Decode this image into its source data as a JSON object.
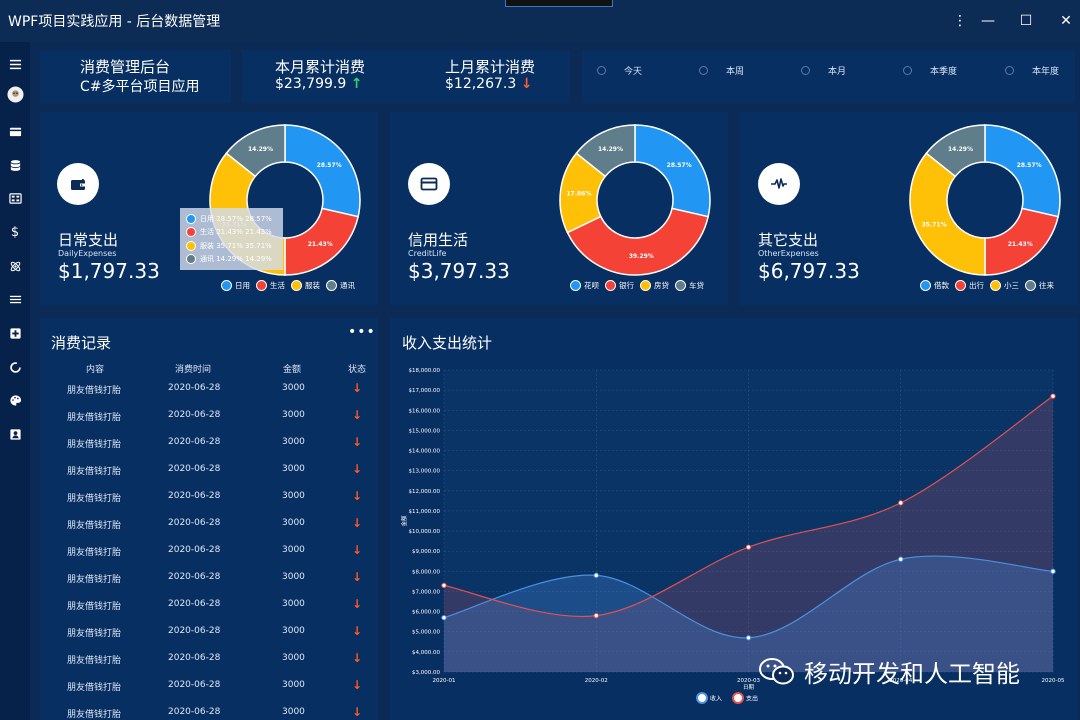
{
  "window": {
    "title": "WPF项目实践应用 - 后台数据管理",
    "controls": [
      "⋮",
      "—",
      "☐",
      "✕"
    ]
  },
  "header": {
    "app_title": "消费管理后台",
    "app_subtitle": "C#多平台项目应用",
    "month_label": "本月累计消费",
    "month_value": "$23,799.9",
    "month_trend": "↑",
    "last_month_label": "上月累计消费",
    "last_month_value": "$12,267.3",
    "last_month_trend": "↓"
  },
  "periods": [
    "今天",
    "本周",
    "本月",
    "本季度",
    "本年度"
  ],
  "cards": [
    {
      "title": "日常支出",
      "subtitle": "DailyExpenses",
      "amount": "$1,797.33",
      "icon": "wallet-icon",
      "slices": [
        {
          "name": "日用",
          "value": 28.57,
          "label": "28.57%",
          "color": "#2196f3"
        },
        {
          "name": "生活",
          "value": 21.43,
          "label": "21.43%",
          "color": "#f44336"
        },
        {
          "name": "服装",
          "value": 35.71,
          "label": "35.71%",
          "color": "#ffc107"
        },
        {
          "name": "通讯",
          "value": 14.29,
          "label": "14.29%",
          "color": "#607d8b"
        }
      ],
      "tooltip": [
        {
          "name": "日用",
          "text": "日用 28.57% 28.57%"
        },
        {
          "name": "生活",
          "text": "生活 21.43% 21.43%"
        },
        {
          "name": "服装",
          "text": "服装 35.71% 35.71%"
        },
        {
          "name": "通讯",
          "text": "通讯 14.29% 14.29%"
        }
      ]
    },
    {
      "title": "信用生活",
      "subtitle": "CreditLife",
      "amount": "$3,797.33",
      "icon": "credit-card-icon",
      "slices": [
        {
          "name": "花呗",
          "value": 28.57,
          "label": "28.57%",
          "color": "#2196f3"
        },
        {
          "name": "银行",
          "value": 39.29,
          "label": "39.29%",
          "color": "#f44336"
        },
        {
          "name": "房贷",
          "value": 17.86,
          "label": "17.86%",
          "color": "#ffc107"
        },
        {
          "name": "车贷",
          "value": 14.29,
          "label": "14.29%",
          "color": "#607d8b"
        }
      ]
    },
    {
      "title": "其它支出",
      "subtitle": "OtherExpenses",
      "amount": "$6,797.33",
      "icon": "pulse-icon",
      "slices": [
        {
          "name": "借款",
          "value": 28.57,
          "label": "28.57%",
          "color": "#2196f3"
        },
        {
          "name": "出行",
          "value": 21.43,
          "label": "21.43%",
          "color": "#f44336"
        },
        {
          "name": "小三",
          "value": 35.71,
          "label": "35.71%",
          "color": "#ffc107"
        },
        {
          "name": "往来",
          "value": 14.29,
          "label": "14.29%",
          "color": "#607d8b"
        }
      ]
    }
  ],
  "records": {
    "title": "消费记录",
    "more": "•••",
    "columns": [
      "内容",
      "消费时间",
      "金额",
      "状态"
    ],
    "rows": [
      [
        "朋友借钱打胎",
        "2020-06-28",
        "3000",
        "↓"
      ],
      [
        "朋友借钱打胎",
        "2020-06-28",
        "3000",
        "↓"
      ],
      [
        "朋友借钱打胎",
        "2020-06-28",
        "3000",
        "↓"
      ],
      [
        "朋友借钱打胎",
        "2020-06-28",
        "3000",
        "↓"
      ],
      [
        "朋友借钱打胎",
        "2020-06-28",
        "3000",
        "↓"
      ],
      [
        "朋友借钱打胎",
        "2020-06-28",
        "3000",
        "↓"
      ],
      [
        "朋友借钱打胎",
        "2020-06-28",
        "3000",
        "↓"
      ],
      [
        "朋友借钱打胎",
        "2020-06-28",
        "3000",
        "↓"
      ],
      [
        "朋友借钱打胎",
        "2020-06-28",
        "3000",
        "↓"
      ],
      [
        "朋友借钱打胎",
        "2020-06-28",
        "3000",
        "↓"
      ],
      [
        "朋友借钱打胎",
        "2020-06-28",
        "3000",
        "↓"
      ],
      [
        "朋友借钱打胎",
        "2020-06-28",
        "3000",
        "↓"
      ],
      [
        "朋友借钱打胎",
        "2020-06-28",
        "3000",
        "↓"
      ]
    ]
  },
  "stats": {
    "title": "收入支出统计"
  },
  "chart_data": [
    {
      "type": "pie",
      "categories": [
        "日用",
        "生活",
        "服装",
        "通讯"
      ],
      "values": [
        28.57,
        21.43,
        35.71,
        14.29
      ]
    },
    {
      "type": "pie",
      "categories": [
        "花呗",
        "银行",
        "房贷",
        "车贷"
      ],
      "values": [
        28.57,
        39.29,
        17.86,
        14.29
      ]
    },
    {
      "type": "pie",
      "categories": [
        "借款",
        "出行",
        "小三",
        "往来"
      ],
      "values": [
        28.57,
        21.43,
        35.71,
        14.29
      ]
    },
    {
      "type": "area",
      "title": "收入支出统计",
      "x": [
        "2020-01",
        "2020-02",
        "2020-03",
        "2020-04",
        "2020-05"
      ],
      "xlabel": "日期",
      "ylabel": "金额",
      "ylim": [
        3000,
        18000
      ],
      "yticks": [
        "$3,000.00",
        "$4,000.00",
        "$5,000.00",
        "$6,000.00",
        "$7,000.00",
        "$8,000.00",
        "$9,000.00",
        "$10,000.00",
        "$11,000.00",
        "$12,000.00",
        "$13,000.00",
        "$14,000.00",
        "$15,000.00",
        "$16,000.00",
        "$17,000.00",
        "$18,000.00"
      ],
      "series": [
        {
          "name": "收入",
          "values": [
            5700,
            7800,
            4700,
            8600,
            8000
          ],
          "color": "#4a90e2"
        },
        {
          "name": "支出",
          "values": [
            7300,
            5800,
            9200,
            11400,
            16700
          ],
          "color": "#e0524f"
        }
      ],
      "legend": "bottom"
    }
  ],
  "watermark": "移动开发和人工智能"
}
